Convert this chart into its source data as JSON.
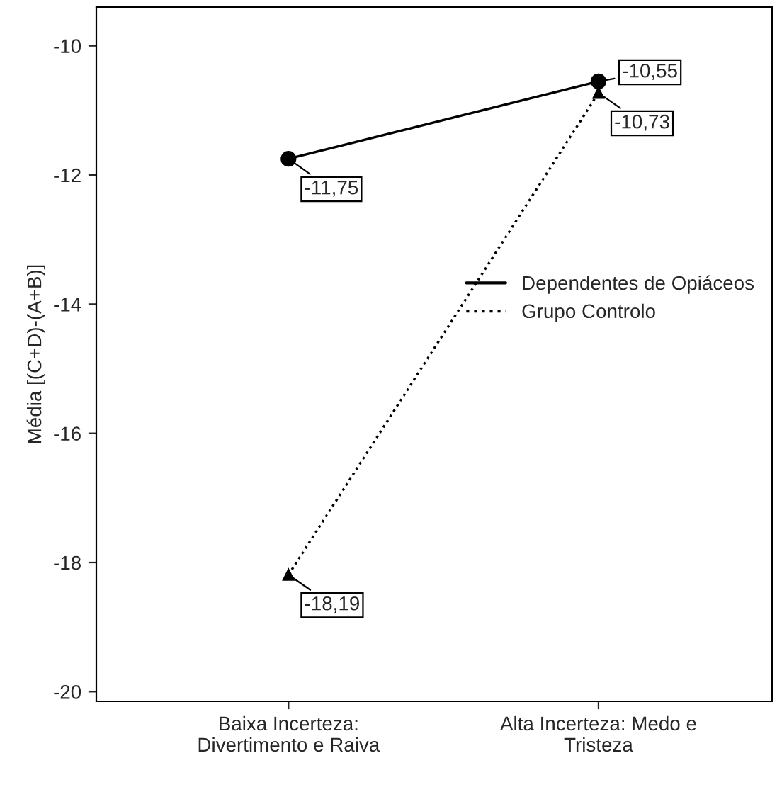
{
  "chart_data": {
    "type": "line",
    "ylabel": "Média [(C+D)-(A+B)]",
    "categories": [
      "Baixa Incerteza:\nDivertimento e Raiva",
      "Alta Incerteza: Medo e\nTristeza"
    ],
    "series": [
      {
        "name": "Dependentes de Opiáceos",
        "color": "#000000",
        "values": [
          -11.75,
          -10.55
        ],
        "value_labels": [
          "-11,75",
          "-10,55"
        ],
        "marker": "circle",
        "line_style": "solid"
      },
      {
        "name": "Grupo Controlo",
        "color": "#000000",
        "values": [
          -18.19,
          -10.73
        ],
        "value_labels": [
          "-18,19",
          "-10,73"
        ],
        "marker": "triangle",
        "line_style": "dotted"
      }
    ],
    "ylim": [
      -20.15,
      -9.4
    ],
    "yticks": [
      {
        "value": -10,
        "label": "-10"
      },
      {
        "value": -12,
        "label": "-12"
      },
      {
        "value": -14,
        "label": "-14"
      },
      {
        "value": -16,
        "label": "-16"
      },
      {
        "value": -18,
        "label": "-18"
      },
      {
        "value": -20,
        "label": "-20"
      }
    ],
    "grid": false,
    "legend": "right"
  }
}
